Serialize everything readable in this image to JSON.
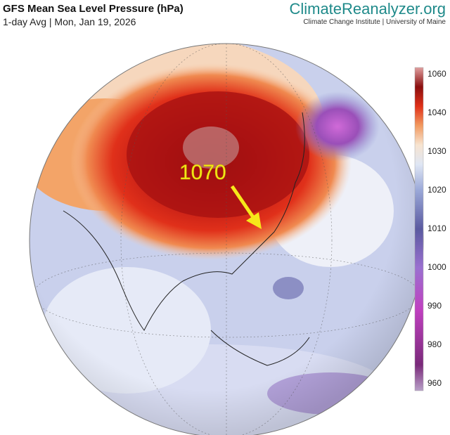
{
  "header": {
    "title": "GFS Mean Sea Level Pressure (hPa)",
    "subtitle": "1-day Avg | Mon, Jan 19, 2026",
    "brand": "ClimateReanalyzer.org",
    "brand_subtitle": "Climate Change Institute | University of Maine"
  },
  "annotation": "1070",
  "colorbar": {
    "labels": [
      1060,
      1040,
      1030,
      1020,
      1010,
      1000,
      990,
      980,
      960
    ]
  }
}
